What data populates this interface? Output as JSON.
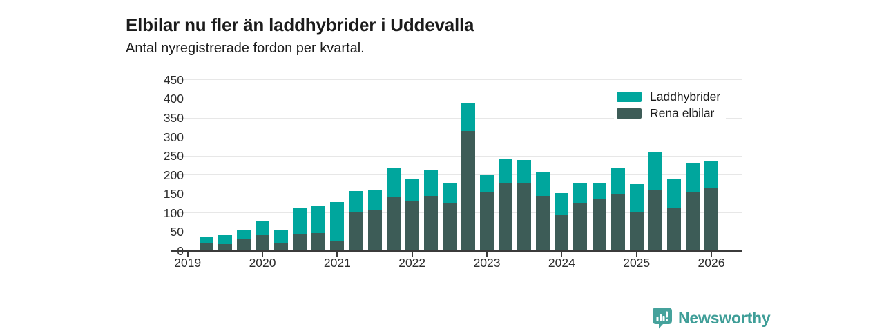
{
  "header": {
    "title": "Elbilar nu fler än laddhybrider i Uddevalla",
    "subtitle": "Antal nyregistrerade fordon per kvartal."
  },
  "colors": {
    "laddhybrider": "#00a69d",
    "rena_elbilar": "#3d5c57",
    "grid": "#e7e7e7",
    "axis": "#3b3b3b",
    "text": "#1b1b1b",
    "brand_teal": "#45a29c"
  },
  "legend": {
    "items": [
      {
        "label": "Laddhybrider",
        "color": "#00a69d"
      },
      {
        "label": "Rena elbilar",
        "color": "#3d5c57"
      }
    ]
  },
  "chart_data": {
    "type": "bar",
    "stacked": true,
    "title": "Elbilar nu fler än laddhybrider i Uddevalla",
    "subtitle": "Antal nyregistrerade fordon per kvartal.",
    "categories": [
      "2019 Q2",
      "2019 Q3",
      "2019 Q4",
      "2020 Q1",
      "2020 Q2",
      "2020 Q3",
      "2020 Q4",
      "2021 Q1",
      "2021 Q2",
      "2021 Q3",
      "2021 Q4",
      "2022 Q1",
      "2022 Q2",
      "2022 Q3",
      "2022 Q4",
      "2023 Q1",
      "2023 Q2",
      "2023 Q3",
      "2023 Q4",
      "2024 Q1",
      "2024 Q2",
      "2024 Q3",
      "2024 Q4",
      "2025 Q1",
      "2025 Q2",
      "2025 Q3",
      "2025 Q4",
      "2026 Q1"
    ],
    "series": [
      {
        "name": "Rena elbilar",
        "color": "#3d5c57",
        "values": [
          22,
          19,
          31,
          41,
          22,
          46,
          48,
          27,
          104,
          108,
          141,
          130,
          146,
          126,
          316,
          155,
          178,
          177,
          146,
          95,
          125,
          137,
          151,
          103,
          160,
          115,
          154,
          165
        ]
      },
      {
        "name": "Laddhybrider",
        "color": "#00a69d",
        "values": [
          15,
          23,
          25,
          37,
          35,
          68,
          69,
          101,
          53,
          53,
          77,
          60,
          68,
          53,
          74,
          45,
          64,
          63,
          61,
          57,
          55,
          43,
          69,
          73,
          100,
          76,
          78,
          73
        ]
      }
    ],
    "ylim": [
      0,
      450
    ],
    "yticks": [
      0,
      50,
      100,
      150,
      200,
      250,
      300,
      350,
      400,
      450
    ],
    "xticks": [
      "2019",
      "2020",
      "2021",
      "2022",
      "2023",
      "2024",
      "2025",
      "2026"
    ],
    "grid": "horizontal",
    "legend_position": "top-right"
  },
  "footer": {
    "brand": "Newsworthy"
  }
}
